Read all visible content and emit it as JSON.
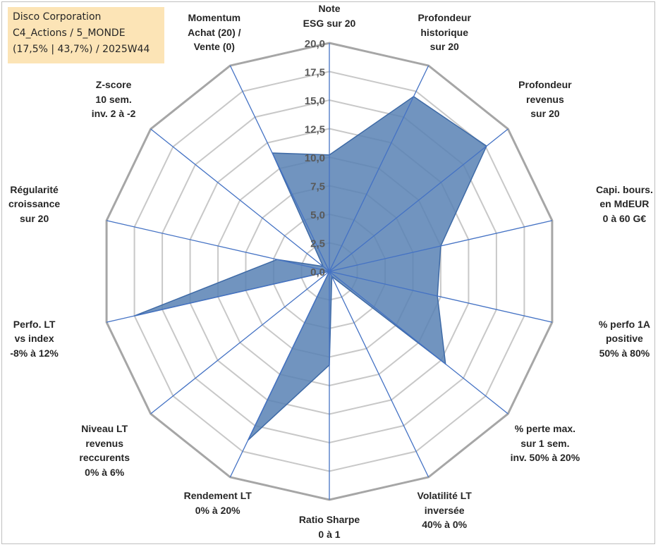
{
  "header": {
    "company": "Disco Corporation",
    "portfolio": "C4_Actions / 5_MONDE",
    "summary": "(17,5% | 43,7%) / 2025W44"
  },
  "chart_data": {
    "type": "radar",
    "title": "",
    "rmin": 0,
    "rmax": 20,
    "tick_step": 2.5,
    "tick_labels": [
      "0,0",
      "2,5",
      "5,0",
      "7,5",
      "10,0",
      "12,5",
      "15,0",
      "17,5",
      "20,0"
    ],
    "grid": true,
    "legend": "none",
    "colors": {
      "fill": "#5a82b4",
      "line": "#4472c4",
      "grid": "#c8c8c8"
    },
    "axes": [
      {
        "lines": [
          "Note",
          "ESG sur 20"
        ]
      },
      {
        "lines": [
          "Profondeur",
          "historique",
          "sur 20"
        ]
      },
      {
        "lines": [
          "Profondeur",
          "revenus",
          "sur 20"
        ]
      },
      {
        "lines": [
          "Capi. bours.",
          "en MdEUR",
          "0 à 60 G€"
        ]
      },
      {
        "lines": [
          "% perfo 1A",
          "positive",
          "50% à 80%"
        ]
      },
      {
        "lines": [
          "% perte max.",
          "sur 1 sem.",
          "inv. 50% à 20%"
        ]
      },
      {
        "lines": [
          "Volatilité LT",
          "inversée",
          "40% à 0%"
        ]
      },
      {
        "lines": [
          "Ratio Sharpe",
          "0 à 1"
        ]
      },
      {
        "lines": [
          "Rendement LT",
          "0% à 20%"
        ]
      },
      {
        "lines": [
          "Niveau LT",
          "revenus",
          "reccurents",
          "0% à 6%"
        ]
      },
      {
        "lines": [
          "Perfo. LT",
          "vs index",
          "-8% à 12%"
        ]
      },
      {
        "lines": [
          "Régularité",
          "croissance",
          "sur 20"
        ]
      },
      {
        "lines": [
          "Z-score",
          "10 sem.",
          "inv. 2 à -2"
        ]
      },
      {
        "lines": [
          "Momentum",
          "Achat (20) /",
          "Vente (0)"
        ]
      }
    ],
    "series": [
      {
        "name": "Disco Corporation",
        "values": [
          10.2,
          17.0,
          17.6,
          10.0,
          9.7,
          13.0,
          0.5,
          8.2,
          16.4,
          0.0,
          17.5,
          4.7,
          0.7,
          11.5
        ]
      }
    ]
  }
}
